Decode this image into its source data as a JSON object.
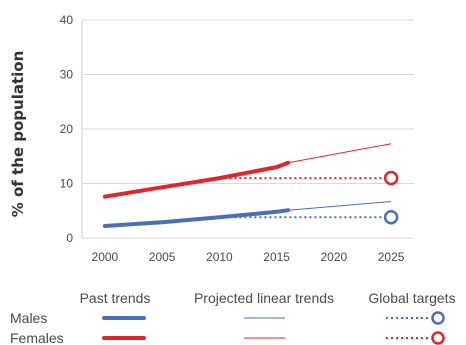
{
  "chart_data": {
    "type": "line",
    "ylabel": "% of the population",
    "xlabel": "",
    "x_ticks": [
      "2000",
      "2005",
      "2010",
      "2015",
      "2020",
      "2025"
    ],
    "y_ticks": [
      "0",
      "10",
      "20",
      "30",
      "40"
    ],
    "xlim": [
      1998,
      2027
    ],
    "ylim": [
      0,
      40
    ],
    "grid": "horizontal",
    "series": [
      {
        "name": "Males",
        "color": "#4a6fb5",
        "past": [
          [
            2000,
            2.2
          ],
          [
            2005,
            2.9
          ],
          [
            2010,
            3.8
          ],
          [
            2015,
            4.8
          ],
          [
            2016,
            5.1
          ]
        ],
        "projected": [
          [
            2016,
            5.1
          ],
          [
            2025,
            6.7
          ]
        ],
        "target": [
          [
            2010,
            3.8
          ],
          [
            2025,
            3.8
          ]
        ]
      },
      {
        "name": "Females",
        "color": "#e0262d",
        "past": [
          [
            2000,
            7.6
          ],
          [
            2005,
            9.3
          ],
          [
            2010,
            11.0
          ],
          [
            2015,
            13.0
          ],
          [
            2016,
            13.8
          ]
        ],
        "projected": [
          [
            2016,
            13.8
          ],
          [
            2025,
            17.3
          ]
        ],
        "target": [
          [
            2010,
            11.0
          ],
          [
            2025,
            11.0
          ]
        ]
      }
    ],
    "legend": {
      "position": "bottom",
      "columns": [
        "Past trends",
        "Projected linear trends",
        "Global targets"
      ],
      "rows": [
        "Males",
        "Females"
      ]
    }
  }
}
